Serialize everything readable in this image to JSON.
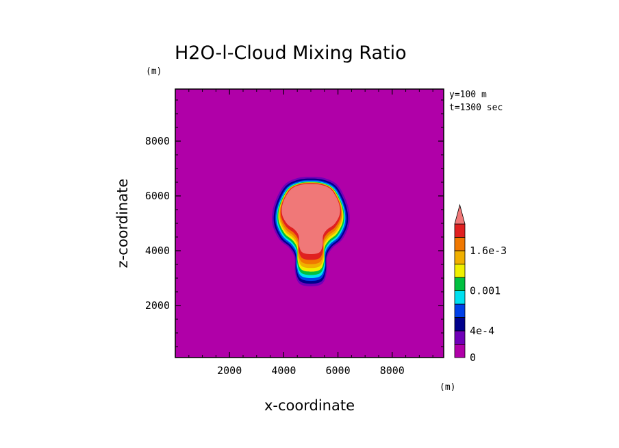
{
  "chart_data": {
    "type": "heatmap",
    "title": "H2O-l-Cloud Mixing Ratio",
    "xlabel": "x-coordinate",
    "ylabel": "z-coordinate",
    "x_unit": "(m)",
    "y_unit": "(m)",
    "xlim": [
      0,
      9900
    ],
    "ylim": [
      100,
      9900
    ],
    "x_ticks": [
      2000,
      4000,
      6000,
      8000
    ],
    "y_ticks": [
      2000,
      4000,
      6000,
      8000
    ],
    "x_tick_labels": [
      "2000",
      "4000",
      "6000",
      "8000"
    ],
    "y_tick_labels": [
      "2000",
      "4000",
      "6000",
      "8000"
    ],
    "annotations": [
      "y=100 m",
      "t=1300 sec"
    ],
    "background_color": "#b000a8",
    "colorbar": {
      "levels": [
        0,
        0.0002,
        0.0004,
        0.0006,
        0.0008,
        0.001,
        0.0012,
        0.0014,
        0.0016,
        0.0018,
        0.002
      ],
      "colors": [
        "#b000a8",
        "#7000b8",
        "#00008c",
        "#0040e8",
        "#00e0f0",
        "#00c040",
        "#f0f000",
        "#f0b000",
        "#f07800",
        "#e02020",
        "#f07878"
      ],
      "extend": "max",
      "tick_values": [
        0,
        0.0004,
        0.001,
        0.0016
      ],
      "tick_labels": [
        "0",
        "4e-4",
        "0.001",
        "1.6e-3"
      ]
    },
    "feature": {
      "description_levels": "nested contour bands from outer (low) to core (high)",
      "core_center": [
        5000,
        5050
      ],
      "max_level_band": ">0.002",
      "cloud_top_z": 6800,
      "cloud_base_z": 2700,
      "core_width_x": [
        3900,
        6100
      ],
      "outer_width_x": [
        3600,
        6500
      ]
    }
  }
}
